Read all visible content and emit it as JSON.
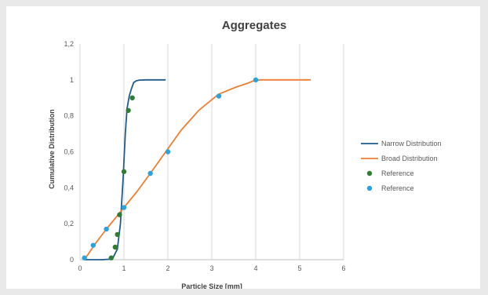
{
  "chart_data": {
    "type": "scatter",
    "title": "Aggregates",
    "xlabel": "Particle Size [mm]",
    "ylabel": "Cumulative Distribution",
    "xlim": [
      0,
      6
    ],
    "ylim": [
      0,
      1.2
    ],
    "x_ticks": [
      0,
      1,
      2,
      3,
      4,
      5,
      6
    ],
    "y_ticks": [
      0,
      0.2,
      0.4,
      0.6,
      0.8,
      1,
      1.2
    ],
    "x_tick_labels": [
      "0",
      "1",
      "2",
      "3",
      "4",
      "5",
      "6"
    ],
    "y_tick_labels": [
      "0",
      "0,2",
      "0,4",
      "0,6",
      "0,8",
      "1",
      "1,2"
    ],
    "grid": "vertical",
    "legend_position": "right",
    "series": [
      {
        "name": "Narrow Distribution",
        "kind": "line",
        "color": "#1f5c8b",
        "x": [
          0.1,
          0.5,
          0.65,
          0.75,
          0.85,
          0.92,
          0.98,
          1.03,
          1.07,
          1.12,
          1.17,
          1.22,
          1.28,
          1.35,
          1.5,
          1.95
        ],
        "y": [
          0,
          0,
          0.002,
          0.01,
          0.06,
          0.2,
          0.45,
          0.7,
          0.84,
          0.91,
          0.95,
          0.985,
          0.995,
          0.999,
          1.0,
          1.0
        ]
      },
      {
        "name": "Broad Distribution",
        "kind": "line",
        "color": "#ed7d31",
        "x": [
          0.1,
          0.35,
          0.6,
          0.8,
          1.0,
          1.3,
          1.6,
          1.95,
          2.3,
          2.7,
          3.15,
          3.55,
          3.8,
          3.95,
          4.1,
          4.5,
          5.0,
          5.25
        ],
        "y": [
          0.0,
          0.09,
          0.17,
          0.23,
          0.29,
          0.38,
          0.48,
          0.6,
          0.72,
          0.83,
          0.92,
          0.96,
          0.98,
          0.995,
          1.0,
          1.0,
          1.0,
          1.0
        ]
      },
      {
        "name": "Reference",
        "kind": "points",
        "color": "#2e7d32",
        "x": [
          0.71,
          0.8,
          0.85,
          0.9,
          1.0,
          1.1,
          1.19
        ],
        "y": [
          0.01,
          0.07,
          0.14,
          0.25,
          0.49,
          0.83,
          0.9
        ]
      },
      {
        "name": "Reference",
        "kind": "points",
        "color": "#29a3dd",
        "x": [
          0.1,
          0.3,
          0.6,
          1.0,
          1.6,
          2.0,
          3.16,
          4.0
        ],
        "y": [
          0.01,
          0.08,
          0.17,
          0.29,
          0.48,
          0.6,
          0.91,
          1.0
        ]
      }
    ]
  }
}
